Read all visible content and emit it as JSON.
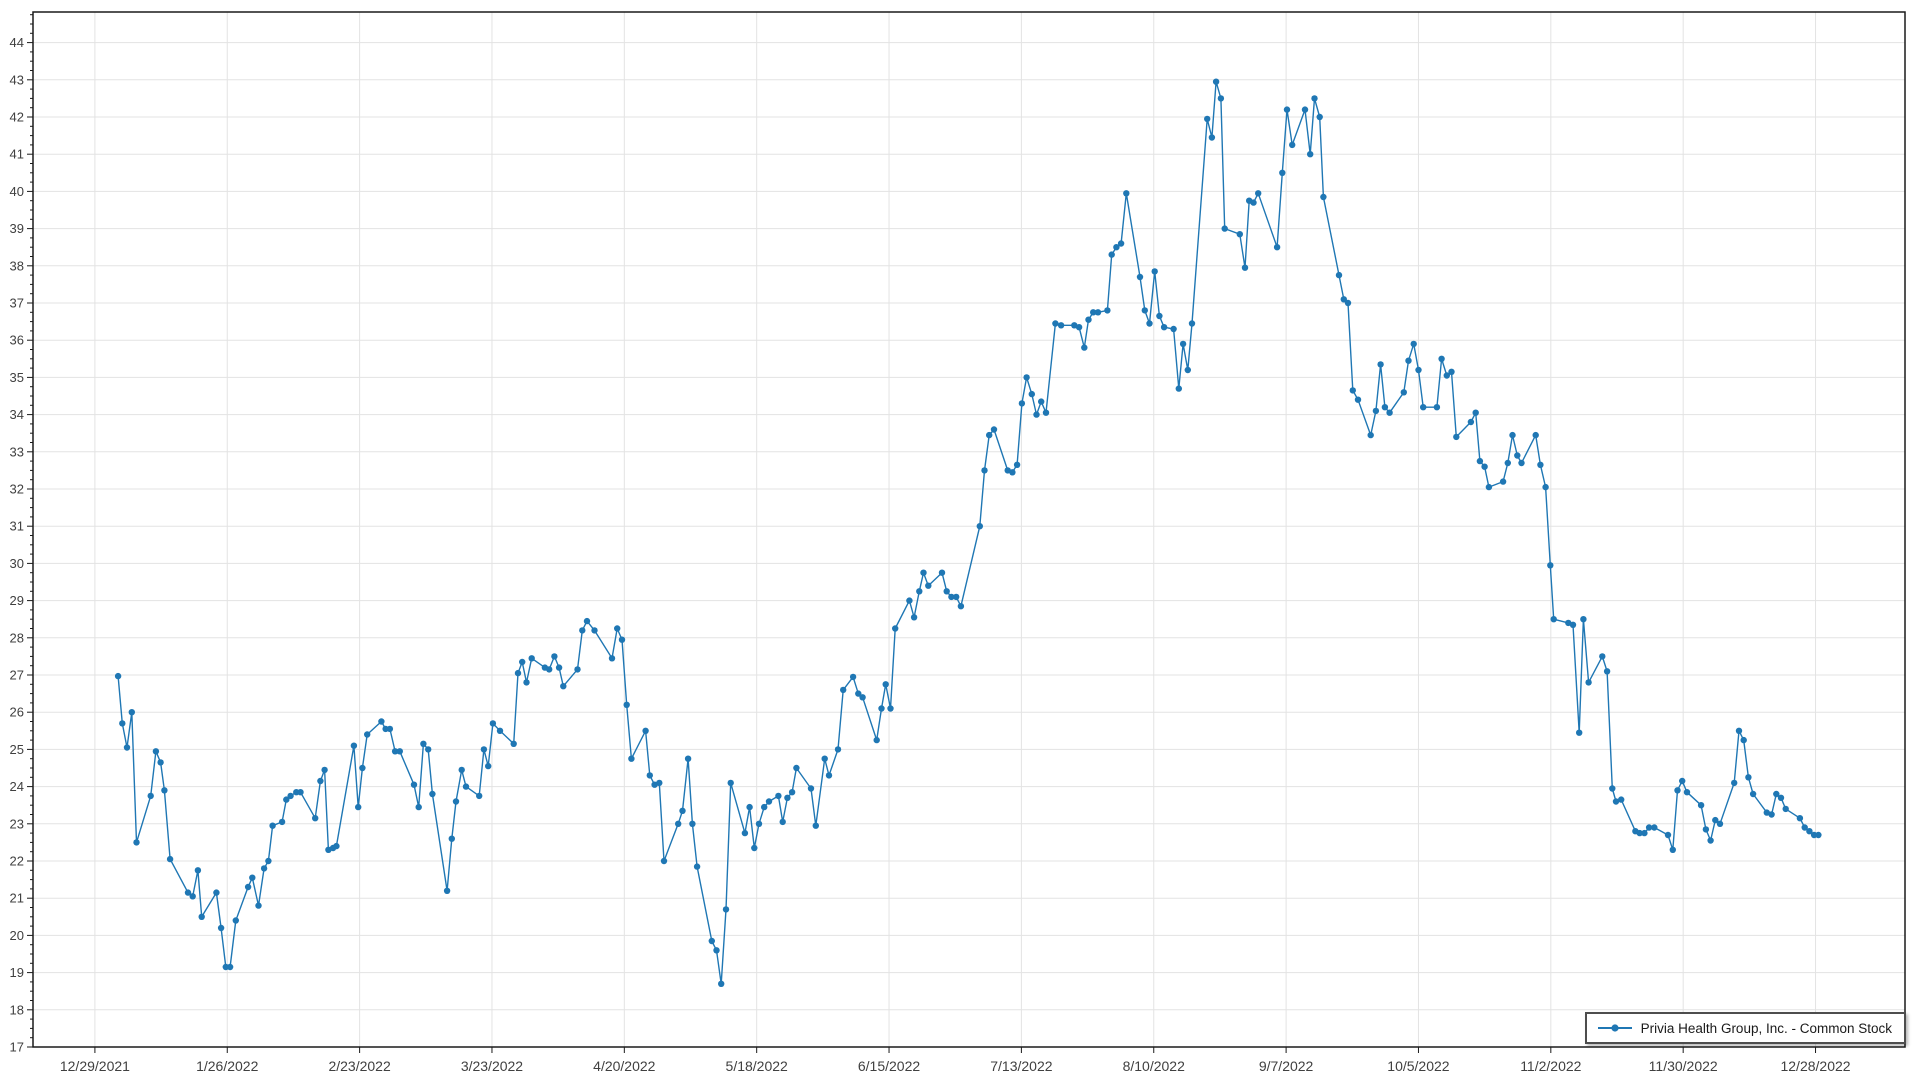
{
  "window": {
    "background": "#ffffff"
  },
  "colors": {
    "series_line": "#1f77b4",
    "series_marker": "#1f77b4",
    "gridline": "#e3e3e3",
    "plot_border": "#1a1a1a",
    "tick_mark": "#1a1a1a",
    "tick_label": "#404040",
    "legend_border": "#4d4d4d"
  },
  "chart_data": {
    "type": "line",
    "title": "",
    "legend": {
      "position": "bottom-right"
    },
    "x_axis": {
      "start_date": "12/29/2021",
      "unit": "calendar days since start_date",
      "grid": true,
      "ticks": [
        {
          "label": "12/29/2021",
          "day": 0
        },
        {
          "label": "1/26/2022",
          "day": 28
        },
        {
          "label": "2/23/2022",
          "day": 56
        },
        {
          "label": "3/23/2022",
          "day": 84
        },
        {
          "label": "4/20/2022",
          "day": 112
        },
        {
          "label": "5/18/2022",
          "day": 140
        },
        {
          "label": "6/15/2022",
          "day": 168
        },
        {
          "label": "7/13/2022",
          "day": 196
        },
        {
          "label": "8/10/2022",
          "day": 224
        },
        {
          "label": "9/7/2022",
          "day": 252
        },
        {
          "label": "10/5/2022",
          "day": 280
        },
        {
          "label": "11/2/2022",
          "day": 308
        },
        {
          "label": "11/30/2022",
          "day": 336
        },
        {
          "label": "12/28/2022",
          "day": 364
        }
      ]
    },
    "y_axis": {
      "min": 17,
      "max": 44,
      "tick_step": 1,
      "minor_tick_step": 0.25,
      "grid": true,
      "ticks": [
        17,
        18,
        19,
        20,
        21,
        22,
        23,
        24,
        25,
        26,
        27,
        28,
        29,
        30,
        31,
        32,
        33,
        34,
        35,
        36,
        37,
        38,
        39,
        40,
        41,
        42,
        43,
        44
      ]
    },
    "series": [
      {
        "name": "Privia Health Group, Inc. - Common Stock",
        "color": "#1f77b4",
        "marker": "circle",
        "points": [
          [
            4.9,
            26.97
          ],
          [
            5.8,
            25.7
          ],
          [
            6.8,
            25.05
          ],
          [
            7.8,
            26.0
          ],
          [
            8.8,
            22.5
          ],
          [
            11.8,
            23.75
          ],
          [
            12.9,
            24.95
          ],
          [
            13.9,
            24.65
          ],
          [
            14.7,
            23.9
          ],
          [
            15.9,
            22.05
          ],
          [
            19.7,
            21.15
          ],
          [
            20.7,
            21.05
          ],
          [
            21.8,
            21.75
          ],
          [
            22.6,
            20.5
          ],
          [
            25.7,
            21.15
          ],
          [
            26.7,
            20.2
          ],
          [
            27.7,
            19.15
          ],
          [
            28.6,
            19.15
          ],
          [
            29.8,
            20.4
          ],
          [
            32.4,
            21.3
          ],
          [
            33.3,
            21.55
          ],
          [
            34.6,
            20.8
          ],
          [
            35.8,
            21.8
          ],
          [
            36.7,
            22.0
          ],
          [
            37.6,
            22.95
          ],
          [
            39.6,
            23.05
          ],
          [
            40.5,
            23.65
          ],
          [
            41.4,
            23.75
          ],
          [
            42.6,
            23.85
          ],
          [
            43.5,
            23.85
          ],
          [
            46.6,
            23.15
          ],
          [
            47.7,
            24.15
          ],
          [
            48.6,
            24.45
          ],
          [
            49.4,
            22.3
          ],
          [
            50.4,
            22.35
          ],
          [
            51.1,
            22.4
          ],
          [
            54.8,
            25.1
          ],
          [
            55.7,
            23.45
          ],
          [
            56.6,
            24.5
          ],
          [
            57.6,
            25.4
          ],
          [
            60.6,
            25.75
          ],
          [
            61.5,
            25.55
          ],
          [
            62.4,
            25.55
          ],
          [
            63.5,
            24.95
          ],
          [
            64.5,
            24.95
          ],
          [
            67.5,
            24.05
          ],
          [
            68.5,
            23.45
          ],
          [
            69.5,
            25.15
          ],
          [
            70.5,
            25.0
          ],
          [
            71.4,
            23.8
          ],
          [
            74.5,
            21.2
          ],
          [
            75.5,
            22.6
          ],
          [
            76.4,
            23.6
          ],
          [
            77.6,
            24.45
          ],
          [
            78.5,
            24.0
          ],
          [
            81.3,
            23.75
          ],
          [
            82.3,
            25.0
          ],
          [
            83.2,
            24.55
          ],
          [
            84.2,
            25.7
          ],
          [
            85.7,
            25.5
          ],
          [
            88.6,
            25.15
          ],
          [
            89.5,
            27.05
          ],
          [
            90.4,
            27.35
          ],
          [
            91.3,
            26.8
          ],
          [
            92.4,
            27.45
          ],
          [
            95.2,
            27.2
          ],
          [
            96.1,
            27.15
          ],
          [
            97.2,
            27.5
          ],
          [
            98.2,
            27.2
          ],
          [
            99.1,
            26.7
          ],
          [
            102.1,
            27.15
          ],
          [
            103.1,
            28.2
          ],
          [
            104.1,
            28.45
          ],
          [
            105.7,
            28.2
          ],
          [
            109.4,
            27.45
          ],
          [
            110.5,
            28.25
          ],
          [
            111.5,
            27.95
          ],
          [
            112.5,
            26.2
          ],
          [
            113.5,
            24.75
          ],
          [
            116.5,
            25.5
          ],
          [
            117.4,
            24.3
          ],
          [
            118.4,
            24.05
          ],
          [
            119.4,
            24.1
          ],
          [
            120.4,
            22.0
          ],
          [
            123.4,
            23.0
          ],
          [
            124.3,
            23.35
          ],
          [
            125.5,
            24.75
          ],
          [
            126.4,
            23.0
          ],
          [
            127.4,
            21.85
          ],
          [
            130.5,
            19.85
          ],
          [
            131.5,
            19.6
          ],
          [
            132.5,
            18.7
          ],
          [
            133.5,
            20.7
          ],
          [
            134.5,
            24.1
          ],
          [
            137.5,
            22.75
          ],
          [
            138.5,
            23.45
          ],
          [
            139.5,
            22.35
          ],
          [
            140.5,
            23.0
          ],
          [
            141.6,
            23.45
          ],
          [
            142.6,
            23.6
          ],
          [
            144.6,
            23.75
          ],
          [
            145.5,
            23.05
          ],
          [
            146.5,
            23.7
          ],
          [
            147.5,
            23.85
          ],
          [
            148.4,
            24.5
          ],
          [
            151.5,
            23.95
          ],
          [
            152.5,
            22.95
          ],
          [
            154.4,
            24.75
          ],
          [
            155.3,
            24.3
          ],
          [
            157.2,
            25.0
          ],
          [
            158.3,
            26.6
          ],
          [
            160.4,
            26.95
          ],
          [
            161.5,
            26.5
          ],
          [
            162.4,
            26.4
          ],
          [
            165.4,
            25.25
          ],
          [
            166.4,
            26.1
          ],
          [
            167.3,
            26.75
          ],
          [
            168.3,
            26.1
          ],
          [
            169.3,
            28.25
          ],
          [
            172.3,
            29.0
          ],
          [
            173.3,
            28.55
          ],
          [
            174.4,
            29.25
          ],
          [
            175.3,
            29.75
          ],
          [
            176.3,
            29.4
          ],
          [
            179.2,
            29.75
          ],
          [
            180.2,
            29.25
          ],
          [
            181.2,
            29.1
          ],
          [
            182.2,
            29.1
          ],
          [
            183.2,
            28.85
          ],
          [
            187.2,
            31.0
          ],
          [
            188.2,
            32.5
          ],
          [
            189.2,
            33.45
          ],
          [
            190.2,
            33.6
          ],
          [
            193.1,
            32.5
          ],
          [
            194.1,
            32.45
          ],
          [
            195.1,
            32.65
          ],
          [
            196.1,
            34.3
          ],
          [
            197.1,
            35.0
          ],
          [
            198.2,
            34.55
          ],
          [
            199.2,
            34.0
          ],
          [
            200.2,
            34.35
          ],
          [
            201.2,
            34.05
          ],
          [
            203.2,
            36.45
          ],
          [
            204.4,
            36.4
          ],
          [
            207.2,
            36.4
          ],
          [
            208.2,
            36.35
          ],
          [
            209.3,
            35.8
          ],
          [
            210.2,
            36.55
          ],
          [
            211.2,
            36.75
          ],
          [
            212.2,
            36.75
          ],
          [
            214.2,
            36.8
          ],
          [
            215.1,
            38.3
          ],
          [
            216.1,
            38.5
          ],
          [
            217.1,
            38.6
          ],
          [
            218.2,
            39.95
          ],
          [
            221.1,
            37.7
          ],
          [
            222.1,
            36.8
          ],
          [
            223.1,
            36.45
          ],
          [
            224.2,
            37.85
          ],
          [
            225.2,
            36.65
          ],
          [
            226.2,
            36.35
          ],
          [
            228.2,
            36.3
          ],
          [
            229.3,
            34.7
          ],
          [
            230.2,
            35.9
          ],
          [
            231.2,
            35.2
          ],
          [
            232.1,
            36.45
          ],
          [
            235.3,
            41.95
          ],
          [
            236.3,
            41.45
          ],
          [
            237.2,
            42.95
          ],
          [
            238.2,
            42.5
          ],
          [
            239.0,
            39.0
          ],
          [
            242.2,
            38.85
          ],
          [
            243.3,
            37.95
          ],
          [
            244.2,
            39.75
          ],
          [
            245.1,
            39.7
          ],
          [
            246.1,
            39.95
          ],
          [
            250.1,
            38.5
          ],
          [
            251.2,
            40.5
          ],
          [
            252.2,
            42.2
          ],
          [
            253.3,
            41.25
          ],
          [
            256.0,
            42.2
          ],
          [
            257.1,
            41.0
          ],
          [
            258.0,
            42.5
          ],
          [
            259.1,
            42.0
          ],
          [
            259.9,
            39.85
          ],
          [
            263.2,
            37.75
          ],
          [
            264.2,
            37.1
          ],
          [
            265.1,
            37.0
          ],
          [
            266.1,
            34.65
          ],
          [
            267.2,
            34.4
          ],
          [
            269.9,
            33.45
          ],
          [
            271.0,
            34.1
          ],
          [
            272.0,
            35.35
          ],
          [
            272.9,
            34.2
          ],
          [
            273.9,
            34.05
          ],
          [
            276.9,
            34.6
          ],
          [
            277.9,
            35.45
          ],
          [
            279.0,
            35.9
          ],
          [
            280.0,
            35.2
          ],
          [
            281.0,
            34.2
          ],
          [
            283.9,
            34.2
          ],
          [
            284.9,
            35.5
          ],
          [
            286.0,
            35.05
          ],
          [
            287.0,
            35.15
          ],
          [
            288.0,
            33.4
          ],
          [
            291.1,
            33.8
          ],
          [
            292.1,
            34.05
          ],
          [
            293.0,
            32.75
          ],
          [
            294.0,
            32.6
          ],
          [
            294.9,
            32.05
          ],
          [
            297.9,
            32.2
          ],
          [
            298.9,
            32.7
          ],
          [
            299.9,
            33.45
          ],
          [
            300.9,
            32.9
          ],
          [
            301.8,
            32.7
          ],
          [
            304.8,
            33.45
          ],
          [
            305.8,
            32.65
          ],
          [
            306.9,
            32.05
          ],
          [
            307.9,
            29.95
          ],
          [
            308.6,
            28.5
          ],
          [
            311.7,
            28.4
          ],
          [
            312.7,
            28.35
          ],
          [
            314.0,
            25.45
          ],
          [
            314.9,
            28.5
          ],
          [
            316.0,
            26.8
          ],
          [
            318.9,
            27.5
          ],
          [
            319.9,
            27.1
          ],
          [
            321.0,
            23.95
          ],
          [
            321.8,
            23.6
          ],
          [
            322.9,
            23.65
          ],
          [
            325.9,
            22.8
          ],
          [
            326.8,
            22.75
          ],
          [
            327.8,
            22.75
          ],
          [
            328.8,
            22.9
          ],
          [
            329.9,
            22.9
          ],
          [
            332.8,
            22.7
          ],
          [
            333.8,
            22.3
          ],
          [
            334.8,
            23.9
          ],
          [
            335.8,
            24.15
          ],
          [
            336.8,
            23.85
          ],
          [
            339.8,
            23.5
          ],
          [
            340.8,
            22.85
          ],
          [
            341.8,
            22.55
          ],
          [
            342.8,
            23.1
          ],
          [
            343.8,
            23.0
          ],
          [
            346.8,
            24.1
          ],
          [
            347.8,
            25.5
          ],
          [
            348.8,
            25.25
          ],
          [
            349.8,
            24.25
          ],
          [
            350.8,
            23.8
          ],
          [
            353.7,
            23.3
          ],
          [
            354.7,
            23.25
          ],
          [
            355.7,
            23.8
          ],
          [
            356.7,
            23.7
          ],
          [
            357.7,
            23.4
          ],
          [
            360.7,
            23.15
          ],
          [
            361.7,
            22.9
          ],
          [
            362.7,
            22.8
          ],
          [
            363.7,
            22.7
          ],
          [
            364.6,
            22.7
          ]
        ]
      }
    ]
  }
}
